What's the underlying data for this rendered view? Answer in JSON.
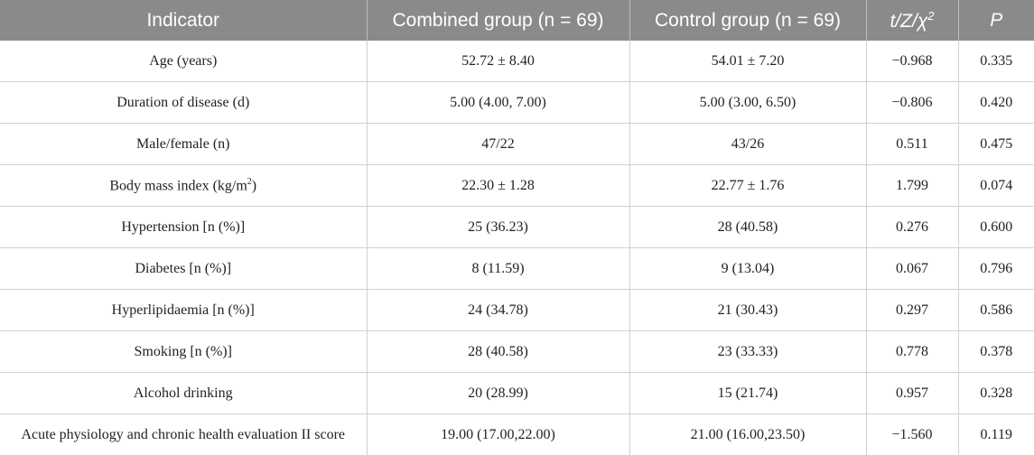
{
  "table": {
    "headers": {
      "indicator": "Indicator",
      "combined": "Combined group (n = 69)",
      "control": "Control group (n = 69)",
      "stat_main": "t/Z/χ",
      "stat_sup": "2",
      "p": "P"
    },
    "rows": [
      {
        "indicator": "Age (years)",
        "combined": "52.72 ± 8.40",
        "control": "54.01 ± 7.20",
        "stat": "−0.968",
        "p": "0.335"
      },
      {
        "indicator": "Duration of disease (d)",
        "combined": "5.00 (4.00, 7.00)",
        "control": "5.00 (3.00, 6.50)",
        "stat": "−0.806",
        "p": "0.420"
      },
      {
        "indicator": "Male/female (n)",
        "combined": "47/22",
        "control": "43/26",
        "stat": "0.511",
        "p": "0.475"
      },
      {
        "indicator_main": "Body mass index (kg/m",
        "indicator_sup": "2",
        "indicator_tail": ")",
        "combined": "22.30 ± 1.28",
        "control": "22.77 ± 1.76",
        "stat": "1.799",
        "p": "0.074"
      },
      {
        "indicator": "Hypertension [n (%)]",
        "combined": "25 (36.23)",
        "control": "28 (40.58)",
        "stat": "0.276",
        "p": "0.600"
      },
      {
        "indicator": "Diabetes [n (%)]",
        "combined": "8 (11.59)",
        "control": "9 (13.04)",
        "stat": "0.067",
        "p": "0.796"
      },
      {
        "indicator": "Hyperlipidaemia [n (%)]",
        "combined": "24 (34.78)",
        "control": "21 (30.43)",
        "stat": "0.297",
        "p": "0.586"
      },
      {
        "indicator": "Smoking [n (%)]",
        "combined": "28 (40.58)",
        "control": "23 (33.33)",
        "stat": "0.778",
        "p": "0.378"
      },
      {
        "indicator": "Alcohol drinking",
        "combined": "20 (28.99)",
        "control": "15 (21.74)",
        "stat": "0.957",
        "p": "0.328"
      },
      {
        "indicator": "Acute physiology and chronic health evaluation II score",
        "combined": "19.00 (17.00,22.00)",
        "control": "21.00 (16.00,23.50)",
        "stat": "−1.560",
        "p": "0.119"
      }
    ]
  }
}
